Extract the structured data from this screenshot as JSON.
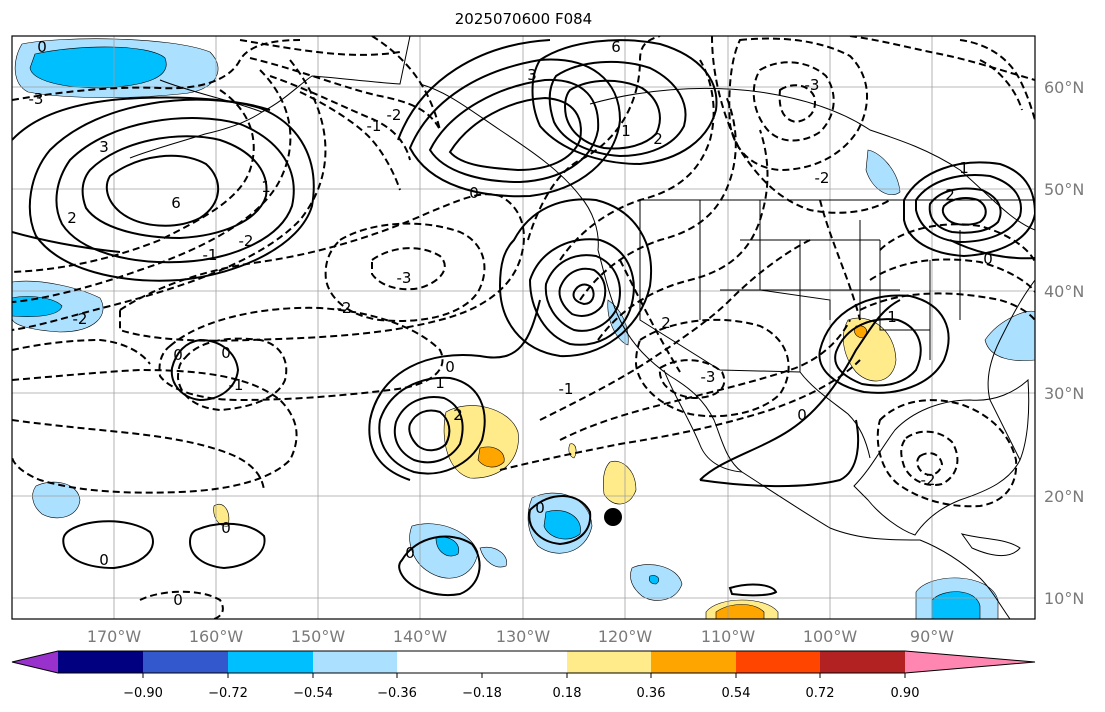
{
  "title": "2025070600 F084",
  "longitude_labels": [
    "170°W",
    "160°W",
    "150°W",
    "140°W",
    "130°W",
    "120°W",
    "110°W",
    "100°W",
    "90°W"
  ],
  "latitude_labels": [
    "60°N",
    "50°N",
    "40°N",
    "30°N",
    "20°N",
    "10°N"
  ],
  "colorbar": {
    "colors": [
      "#9932cc",
      "#000080",
      "#3357cc",
      "#00bfff",
      "#abe0ff",
      "#ffffff",
      "#ffeb8a",
      "#ffa500",
      "#ff4500",
      "#b22222",
      "#ff86b0"
    ],
    "tick_labels": [
      "−0.90",
      "−0.72",
      "−0.54",
      "−0.36",
      "−0.18",
      "0.18",
      "0.36",
      "0.54",
      "0.72",
      "0.90"
    ]
  },
  "contour_labels": [
    "0",
    "3",
    "6",
    "1",
    "2",
    "-3",
    "-2",
    "-1",
    "0",
    "6",
    "3",
    "2",
    "1",
    "-1",
    "-2",
    "-3",
    "-2",
    "0",
    "-1",
    "-2",
    "0",
    "-3",
    "-2",
    "2",
    "1",
    "1",
    "2",
    "0",
    "-1",
    "-3",
    "0",
    "1",
    "-2",
    "2",
    "0",
    "0",
    "0",
    "0",
    "0",
    "0"
  ],
  "marker": "black-dot"
}
